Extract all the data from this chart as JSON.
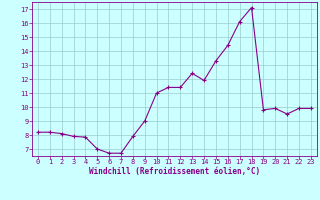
{
  "x": [
    0,
    1,
    2,
    3,
    4,
    5,
    6,
    7,
    8,
    9,
    10,
    11,
    12,
    13,
    14,
    15,
    16,
    17,
    18,
    19,
    20,
    21,
    22,
    23
  ],
  "y": [
    8.2,
    8.2,
    8.1,
    7.9,
    7.85,
    7.0,
    6.7,
    6.7,
    7.9,
    9.0,
    11.0,
    11.4,
    11.4,
    12.4,
    11.9,
    13.3,
    14.4,
    16.1,
    17.1,
    9.8,
    9.9,
    9.5,
    9.9,
    9.9
  ],
  "line_color": "#880088",
  "marker": "+",
  "bg_color": "#ccffff",
  "grid_color": "#99cccc",
  "xlabel": "Windchill (Refroidissement éolien,°C)",
  "xlabel_color": "#880088",
  "tick_color": "#880088",
  "spine_color": "#880088",
  "ylim": [
    6.5,
    17.5
  ],
  "xlim": [
    -0.5,
    23.5
  ],
  "yticks": [
    7,
    8,
    9,
    10,
    11,
    12,
    13,
    14,
    15,
    16,
    17
  ],
  "xticks": [
    0,
    1,
    2,
    3,
    4,
    5,
    6,
    7,
    8,
    9,
    10,
    11,
    12,
    13,
    14,
    15,
    16,
    17,
    18,
    19,
    20,
    21,
    22,
    23
  ]
}
